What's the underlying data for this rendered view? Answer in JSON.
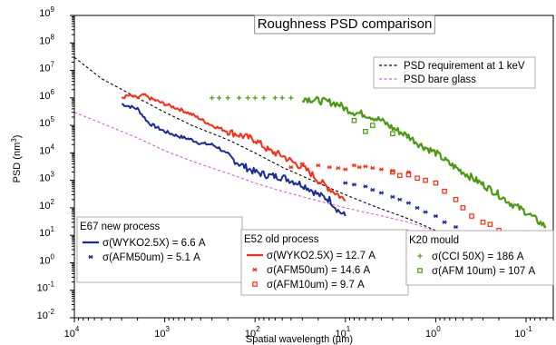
{
  "chart_data": {
    "type": "line",
    "title": "Roughness PSD comparison",
    "xlabel": "Spatial wavelength (µm)",
    "ylabel": "PSD (nm",
    "ylabel_sup": "3",
    "ylabel_close": ")",
    "x_scale": "log-reversed",
    "y_scale": "log",
    "xlim": [
      10000,
      0.05
    ],
    "ylim": [
      0.01,
      1000000000
    ],
    "x_ticks": [
      {
        "base": "10",
        "exp": "4",
        "value": 10000
      },
      {
        "base": "10",
        "exp": "3",
        "value": 1000
      },
      {
        "base": "10",
        "exp": "2",
        "value": 100
      },
      {
        "base": "10",
        "exp": "1",
        "value": 10
      },
      {
        "base": "10",
        "exp": "0",
        "value": 1
      },
      {
        "base": "10",
        "exp": "-1",
        "value": 0.1
      }
    ],
    "y_ticks": [
      {
        "base": "10",
        "exp": "-2",
        "value": 0.01
      },
      {
        "base": "10",
        "exp": "-1",
        "value": 0.1
      },
      {
        "base": "10",
        "exp": "0",
        "value": 1
      },
      {
        "base": "10",
        "exp": "1",
        "value": 10
      },
      {
        "base": "10",
        "exp": "2",
        "value": 100
      },
      {
        "base": "10",
        "exp": "3",
        "value": 1000
      },
      {
        "base": "10",
        "exp": "4",
        "value": 10000
      },
      {
        "base": "10",
        "exp": "5",
        "value": 100000
      },
      {
        "base": "10",
        "exp": "6",
        "value": 1000000
      },
      {
        "base": "10",
        "exp": "7",
        "value": 10000000
      },
      {
        "base": "10",
        "exp": "8",
        "value": 100000000
      },
      {
        "base": "10",
        "exp": "9",
        "value": 1000000000
      }
    ],
    "grid": false,
    "legend_top": [
      {
        "label": "PSD requirement at 1 keV",
        "color": "#000000",
        "dash": true
      },
      {
        "label": "PSD bare glass",
        "color": "#d060d0",
        "dash": true
      }
    ],
    "groups": [
      {
        "title": "E67 new process",
        "entries": [
          {
            "label": "σ(WYKO2.5X) = 6.6  A",
            "color": "#1a2a9a",
            "marker": "line"
          },
          {
            "label": "σ(AFM50um) = 5.1 A",
            "color": "#1a2a9a",
            "marker": "asterisk"
          }
        ]
      },
      {
        "title": "E52 old process",
        "entries": [
          {
            "label": "σ(WYKO2.5X) = 12.7  A",
            "color": "#ff2a10",
            "marker": "line"
          },
          {
            "label": "σ(AFM50um) = 14.6 A",
            "color": "#ff2a10",
            "marker": "asterisk"
          },
          {
            "label": "σ(AFM10um) = 9.7 A",
            "color": "#ff2a10",
            "marker": "hash"
          }
        ]
      },
      {
        "title": "K20 mould",
        "entries": [
          {
            "label": "σ(CCI 50X) = 186  A",
            "color": "#4a9a10",
            "marker": "plus"
          },
          {
            "label": "σ(AFM 10um) = 107  A",
            "color": "#4a9a10",
            "marker": "hash"
          }
        ]
      }
    ],
    "series": [
      {
        "id": "psd-requirement",
        "color": "#000000",
        "style": "dash",
        "width": 1.1,
        "x": [
          10000,
          5000,
          2000,
          1000,
          500,
          200,
          100,
          50,
          20,
          10,
          5,
          2,
          1,
          0.5
        ],
        "y": [
          30000000,
          5000000,
          1000000,
          300000,
          100000,
          30000,
          10000,
          3000,
          800,
          300,
          120,
          40,
          15,
          5
        ]
      },
      {
        "id": "psd-bare-glass",
        "color": "#d060d0",
        "style": "dash",
        "width": 1.1,
        "x": [
          10000,
          5000,
          2000,
          1000,
          500,
          200,
          100,
          50,
          20,
          10,
          5,
          2,
          1,
          0.5
        ],
        "y": [
          300000,
          120000,
          35000,
          12000,
          5000,
          1800,
          800,
          400,
          180,
          100,
          60,
          30,
          14,
          6
        ]
      },
      {
        "id": "e67-wyko",
        "color": "#1a2a9a",
        "style": "line",
        "width": 2,
        "x": [
          3000,
          2500,
          2000,
          1500,
          1000,
          700,
          500,
          400,
          300,
          250,
          200,
          150,
          100,
          70,
          50,
          40,
          30,
          25,
          20,
          15,
          12,
          10
        ],
        "y": [
          600000,
          500000,
          400000,
          120000,
          60000,
          40000,
          30000,
          22000,
          20000,
          15000,
          8000,
          4000,
          2000,
          1500,
          1300,
          1000,
          700,
          500,
          300,
          200,
          80,
          50
        ]
      },
      {
        "id": "e52-wyko",
        "color": "#ff2a10",
        "style": "line",
        "width": 2,
        "x": [
          3000,
          2500,
          2000,
          1700,
          1500,
          1000,
          700,
          500,
          300,
          200,
          150,
          100,
          70,
          50,
          40,
          30,
          25,
          20,
          15,
          12,
          10
        ],
        "y": [
          1000000,
          1200000,
          1000000,
          1300000,
          1000000,
          600000,
          400000,
          250000,
          100000,
          60000,
          45000,
          30000,
          12000,
          8000,
          5000,
          3000,
          2000,
          1000,
          500,
          300,
          180
        ]
      },
      {
        "id": "e67-afm50",
        "color": "#1a2a9a",
        "style": "markers",
        "width": 1.3,
        "x": [
          10,
          8,
          6,
          5,
          4,
          3,
          2.5,
          2,
          1.6,
          1.3,
          1,
          0.8,
          0.6,
          0.5,
          0.45
        ],
        "y": [
          800,
          700,
          600,
          450,
          350,
          250,
          200,
          150,
          100,
          70,
          50,
          30,
          20,
          12,
          10
        ]
      },
      {
        "id": "e52-afm50",
        "color": "#ff2a10",
        "style": "markers",
        "width": 1.3,
        "x": [
          40,
          30,
          20,
          15,
          12,
          10,
          8,
          7,
          6,
          5,
          4,
          3,
          2
        ],
        "y": [
          3000,
          4000,
          3500,
          3000,
          2800,
          2500,
          3500,
          3000,
          3200,
          2800,
          2500,
          2200,
          2000
        ]
      },
      {
        "id": "e52-afm10",
        "color": "#ff2a10",
        "style": "markers",
        "width": 1.3,
        "x": [
          3,
          2.5,
          2,
          1.6,
          1.3,
          1,
          0.8,
          0.6,
          0.5,
          0.4,
          0.3,
          0.25,
          0.2,
          0.17
        ],
        "y": [
          2000,
          1500,
          1600,
          1200,
          1000,
          800,
          400,
          200,
          100,
          50,
          30,
          25,
          15,
          10
        ]
      },
      {
        "id": "k20-cci",
        "color": "#4a9a10",
        "style": "markers",
        "width": 1.3,
        "x": [
          300,
          250,
          200,
          150,
          120,
          100,
          80,
          60,
          50,
          40
        ],
        "y": [
          1000000,
          1000000,
          1000000,
          1000000,
          1000000,
          1000000,
          1000000,
          1000000,
          1000000,
          1000000
        ]
      },
      {
        "id": "k20-afm10",
        "color": "#4a9a10",
        "style": "line",
        "width": 2.2,
        "x": [
          30,
          20,
          15,
          12,
          10,
          8,
          6,
          5,
          4,
          3,
          2,
          1.5,
          1,
          0.7,
          0.5,
          0.3,
          0.2,
          0.15,
          0.1,
          0.08,
          0.06
        ],
        "y": [
          1000000,
          800000,
          700000,
          600000,
          400000,
          300000,
          250000,
          200000,
          150000,
          80000,
          40000,
          20000,
          10000,
          4000,
          2000,
          700,
          300,
          150,
          70,
          40,
          20
        ]
      },
      {
        "id": "k20-afm10-pts",
        "color": "#4a9a10",
        "style": "markers",
        "width": 1.2,
        "x": [
          8,
          6,
          5,
          3
        ],
        "y": [
          150000,
          60000,
          100000,
          50000
        ]
      }
    ]
  }
}
